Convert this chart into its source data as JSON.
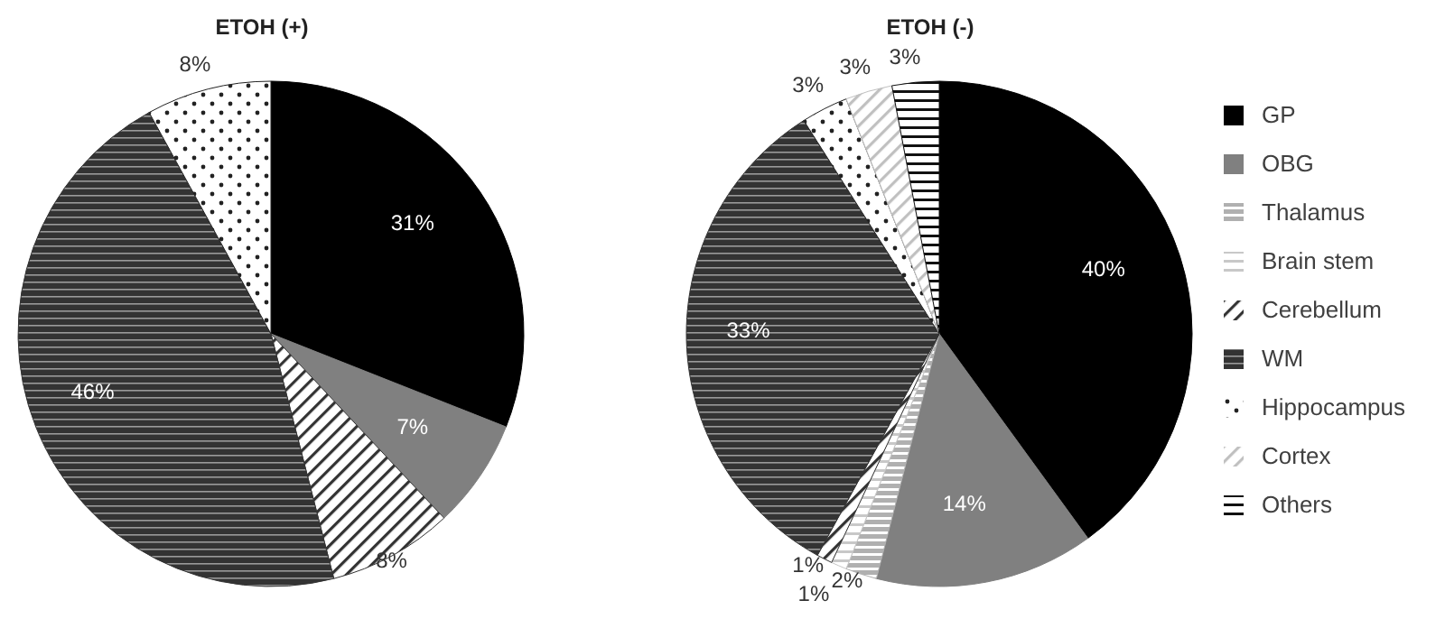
{
  "chart_data": [
    {
      "type": "pie",
      "title": "ETOH (+)",
      "categories": [
        null,
        null,
        null,
        null,
        null,
        null,
        null,
        null,
        null
      ],
      "values": [
        31,
        7,
        0,
        0,
        8,
        46,
        8,
        0,
        0
      ],
      "value_labels": [
        "31%",
        "7%",
        null,
        null,
        "8%",
        "46%",
        "8%",
        null,
        null
      ],
      "colors": [
        "#000000",
        "#808080",
        "#b0b0b0",
        "#c8c8c8",
        "#333333",
        "#333333",
        "#222222",
        "#c0c0c0",
        "#111111"
      ],
      "legend": false
    },
    {
      "type": "pie",
      "title": "ETOH (-)",
      "categories": [
        "GP",
        "OBG",
        "Thalamus",
        "Brain stem",
        "Cerebellum",
        "WM",
        "Hippocampus",
        "Cortex",
        "Others"
      ],
      "values": [
        40,
        14,
        2,
        1,
        1,
        33,
        3,
        3,
        3
      ],
      "value_labels": [
        "40%",
        "14%",
        "2%",
        "1%",
        "1%",
        "33%",
        "3%",
        "3%",
        "3%"
      ],
      "colors": [
        "#000000",
        "#808080",
        "#b0b0b0",
        "#c8c8c8",
        "#333333",
        "#333333",
        "#222222",
        "#c0c0c0",
        "#111111"
      ],
      "legend": "right"
    }
  ]
}
